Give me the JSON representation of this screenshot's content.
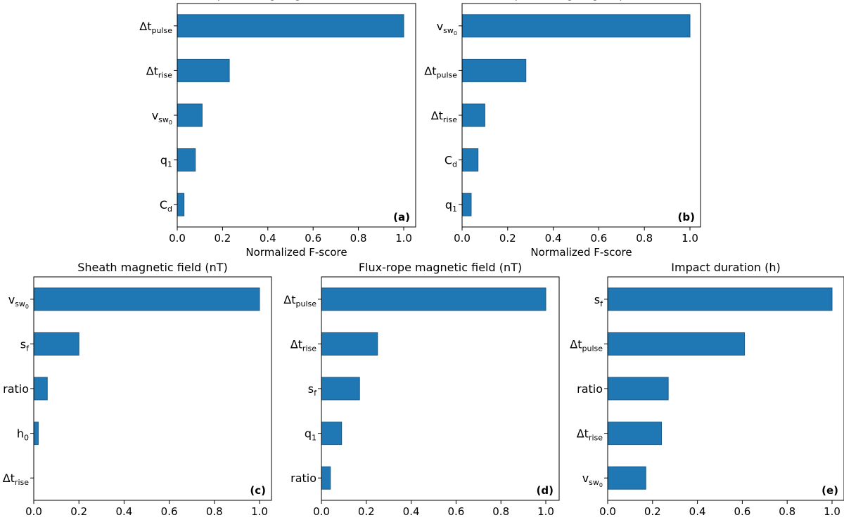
{
  "chart_data": [
    {
      "type": "bar",
      "orientation": "horizontal",
      "panel": "(a)",
      "title": "Flux-rope leading-edge: time of arrival (h)",
      "xlabel": "Normalized F-score",
      "xlim": [
        0,
        1.06
      ],
      "xticks": [
        "0.0",
        "0.2",
        "0.4",
        "0.6",
        "0.8",
        "1.0"
      ],
      "categories": [
        {
          "base": "Δt",
          "sub": "pulse"
        },
        {
          "base": "Δt",
          "sub": "rise"
        },
        {
          "base": "v",
          "sub": "sw",
          "subsub": "0"
        },
        {
          "base": "q",
          "sub": "1"
        },
        {
          "base": "C",
          "sub": "d"
        }
      ],
      "values": [
        1.0,
        0.23,
        0.11,
        0.08,
        0.03
      ]
    },
    {
      "type": "bar",
      "orientation": "horizontal",
      "panel": "(b)",
      "title": "Flux-rope leading-edge: speed (km/s)",
      "xlabel": "Normalized F-score",
      "xlim": [
        0,
        1.06
      ],
      "xticks": [
        "0.0",
        "0.2",
        "0.4",
        "0.6",
        "0.8",
        "1.0"
      ],
      "categories": [
        {
          "base": "v",
          "sub": "sw",
          "subsub": "0"
        },
        {
          "base": "Δt",
          "sub": "pulse"
        },
        {
          "base": "Δt",
          "sub": "rise"
        },
        {
          "base": "C",
          "sub": "d"
        },
        {
          "base": "q",
          "sub": "1"
        }
      ],
      "values": [
        1.0,
        0.28,
        0.1,
        0.07,
        0.04
      ]
    },
    {
      "type": "bar",
      "orientation": "horizontal",
      "panel": "(c)",
      "title": "Sheath magnetic field (nT)",
      "xlabel": "Normalized F-score",
      "xlim": [
        0,
        1.06
      ],
      "xticks": [
        "0.0",
        "0.2",
        "0.4",
        "0.6",
        "0.8",
        "1.0"
      ],
      "categories": [
        {
          "base": "v",
          "sub": "sw",
          "subsub": "0"
        },
        {
          "base": "s",
          "sub": "f"
        },
        {
          "base": "ratio"
        },
        {
          "base": "h",
          "sub": "0"
        },
        {
          "base": "Δt",
          "sub": "rise"
        }
      ],
      "values": [
        1.0,
        0.2,
        0.06,
        0.02,
        0.0
      ]
    },
    {
      "type": "bar",
      "orientation": "horizontal",
      "panel": "(d)",
      "title": "Flux-rope magnetic field (nT)",
      "xlabel": "Normalized F-score",
      "xlim": [
        0,
        1.06
      ],
      "xticks": [
        "0.0",
        "0.2",
        "0.4",
        "0.6",
        "0.8",
        "1.0"
      ],
      "categories": [
        {
          "base": "Δt",
          "sub": "pulse"
        },
        {
          "base": "Δt",
          "sub": "rise"
        },
        {
          "base": "s",
          "sub": "f"
        },
        {
          "base": "q",
          "sub": "1"
        },
        {
          "base": "ratio"
        }
      ],
      "values": [
        1.0,
        0.25,
        0.17,
        0.09,
        0.04
      ]
    },
    {
      "type": "bar",
      "orientation": "horizontal",
      "panel": "(e)",
      "title": "Impact duration (h)",
      "xlabel": "Normalized F-score",
      "xlim": [
        0,
        1.06
      ],
      "xticks": [
        "0.0",
        "0.2",
        "0.4",
        "0.6",
        "0.8",
        "1.0"
      ],
      "categories": [
        {
          "base": "s",
          "sub": "f"
        },
        {
          "base": "Δt",
          "sub": "pulse"
        },
        {
          "base": "ratio"
        },
        {
          "base": "Δt",
          "sub": "rise"
        },
        {
          "base": "v",
          "sub": "sw",
          "subsub": "0"
        }
      ],
      "values": [
        1.0,
        0.61,
        0.27,
        0.24,
        0.17
      ]
    }
  ],
  "colors": {
    "bar_fill": "#1f77b4",
    "bar_edge": "#1a5a8a"
  }
}
